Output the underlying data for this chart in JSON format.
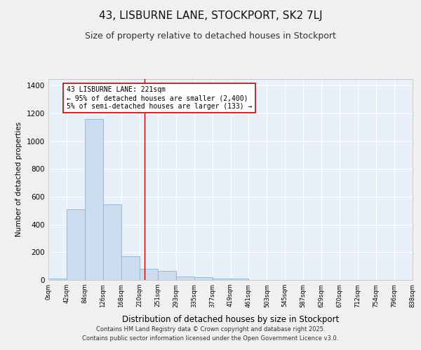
{
  "title": "43, LISBURNE LANE, STOCKPORT, SK2 7LJ",
  "subtitle": "Size of property relative to detached houses in Stockport",
  "xlabel": "Distribution of detached houses by size in Stockport",
  "ylabel": "Number of detached properties",
  "footer_line1": "Contains HM Land Registry data © Crown copyright and database right 2025.",
  "footer_line2": "Contains public sector information licensed under the Open Government Licence v3.0.",
  "bin_edges": [
    0,
    42,
    84,
    126,
    168,
    210,
    252,
    294,
    336,
    378,
    420,
    462,
    504,
    546,
    588,
    630,
    672,
    714,
    756,
    798,
    840
  ],
  "bar_heights": [
    10,
    510,
    1160,
    545,
    170,
    80,
    65,
    25,
    20,
    10,
    10,
    0,
    0,
    0,
    0,
    0,
    0,
    0,
    0,
    0
  ],
  "bar_color": "#ccdcf0",
  "bar_edgecolor": "#8ab4d8",
  "bg_color": "#e8f0fa",
  "grid_color": "#ffffff",
  "vline_x": 221,
  "vline_color": "#cc0000",
  "annotation_text": "43 LISBURNE LANE: 221sqm\n← 95% of detached houses are smaller (2,400)\n5% of semi-detached houses are larger (133) →",
  "annotation_box_color": "#cc0000",
  "ylim": [
    0,
    1450
  ],
  "yticks": [
    0,
    200,
    400,
    600,
    800,
    1000,
    1200,
    1400
  ],
  "tick_labels": [
    "0sqm",
    "42sqm",
    "84sqm",
    "126sqm",
    "168sqm",
    "210sqm",
    "251sqm",
    "293sqm",
    "335sqm",
    "377sqm",
    "419sqm",
    "461sqm",
    "503sqm",
    "545sqm",
    "587sqm",
    "629sqm",
    "670sqm",
    "712sqm",
    "754sqm",
    "796sqm",
    "838sqm"
  ],
  "fig_bg": "#f0f0f0",
  "title_fontsize": 11,
  "subtitle_fontsize": 9
}
